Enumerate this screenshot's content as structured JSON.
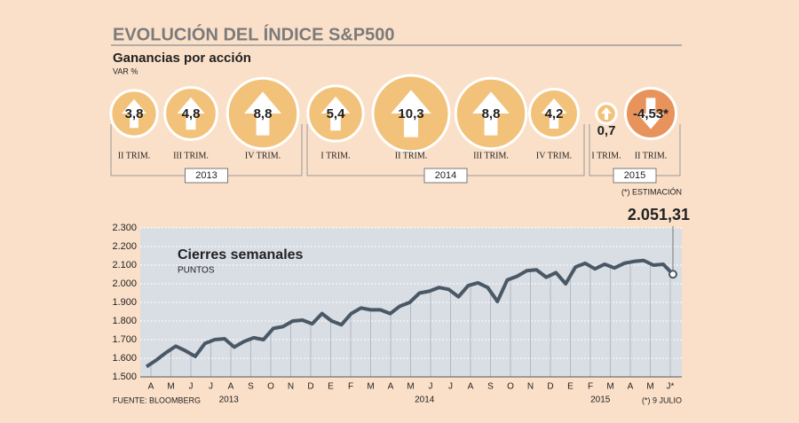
{
  "chart_data": [
    {
      "type": "bubble",
      "title": "EVOLUCIÓN DEL ÍNDICE S&P500",
      "subtitle": "Ganancias por acción",
      "unit": "VAR %",
      "categories": [
        "II TRIM.",
        "III TRIM.",
        "IV TRIM.",
        "I TRIM.",
        "II TRIM.",
        "III TRIM.",
        "IV TRIM.",
        "I TRIM.",
        "II TRIM."
      ],
      "years": [
        "2013",
        "2013",
        "2013",
        "2014",
        "2014",
        "2014",
        "2014",
        "2015",
        "2015"
      ],
      "values": [
        3.8,
        4.8,
        8.8,
        5.4,
        10.3,
        8.8,
        4.2,
        0.7,
        -4.53
      ],
      "value_labels": [
        "3,8",
        "4,8",
        "8,8",
        "5,4",
        "10,3",
        "8,8",
        "4,2",
        "0,7",
        "-4,53*"
      ],
      "color": "#f2c27a",
      "negative_color": "#e8935c",
      "note": "(*) ESTIMACIÓN"
    },
    {
      "type": "line",
      "title": "Cierres semanales",
      "subtitle": "PUNTOS",
      "x_labels": [
        "A",
        "M",
        "J",
        "J",
        "A",
        "S",
        "O",
        "N",
        "D",
        "E",
        "F",
        "M",
        "A",
        "M",
        "J",
        "J",
        "A",
        "S",
        "O",
        "N",
        "D",
        "E",
        "F",
        "M",
        "A",
        "M",
        "J*"
      ],
      "year_labels": [
        "2013",
        "2014",
        "2015"
      ],
      "values": [
        1555,
        1590,
        1630,
        1665,
        1640,
        1610,
        1680,
        1700,
        1705,
        1660,
        1690,
        1710,
        1700,
        1760,
        1770,
        1800,
        1805,
        1785,
        1840,
        1800,
        1780,
        1840,
        1870,
        1860,
        1860,
        1840,
        1880,
        1900,
        1950,
        1960,
        1980,
        1970,
        1930,
        1990,
        2005,
        1980,
        1905,
        2020,
        2040,
        2070,
        2075,
        2035,
        2060,
        2000,
        2090,
        2110,
        2080,
        2105,
        2085,
        2110,
        2120,
        2125,
        2100,
        2105,
        2051.31
      ],
      "last_value_label": "2.051,31",
      "color": "#4a5866",
      "ylim": [
        1500,
        2300
      ],
      "yticks": [
        {
          "value": 1500,
          "label": "1.500"
        },
        {
          "value": 1600,
          "label": "1.600"
        },
        {
          "value": 1700,
          "label": "1.700"
        },
        {
          "value": 1800,
          "label": "1.800"
        },
        {
          "value": 1900,
          "label": "1.900"
        },
        {
          "value": 2000,
          "label": "2.000"
        },
        {
          "value": 2100,
          "label": "2.100"
        },
        {
          "value": 2200,
          "label": "2.200"
        },
        {
          "value": 2300,
          "label": "2.300"
        }
      ],
      "grid": true,
      "source": "FUENTE: BLOOMBERG",
      "note": "(*) 9 JULIO"
    }
  ]
}
